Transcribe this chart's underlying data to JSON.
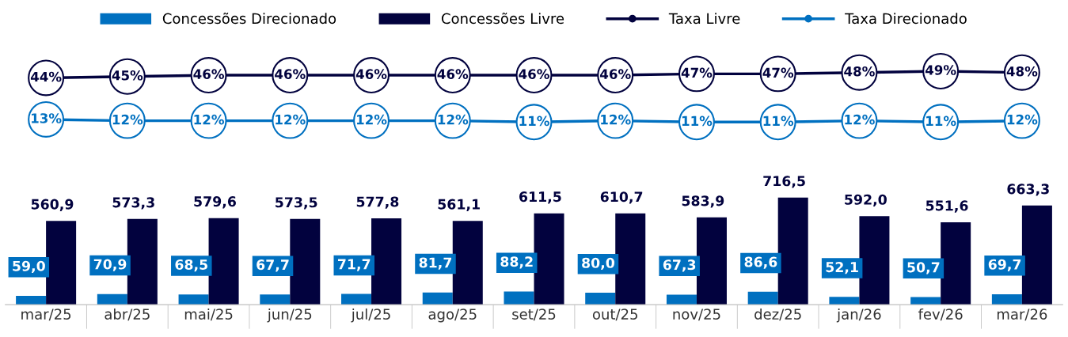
{
  "chart_data": [
    {
      "type": "line",
      "categories": [
        null,
        null,
        null,
        null,
        null,
        null,
        null,
        null,
        null,
        null,
        null,
        null,
        null
      ],
      "series": [
        {
          "name": "Taxa Livre",
          "color": "#02023e",
          "values": [
            44,
            45,
            46,
            46,
            46,
            46,
            46,
            46,
            47,
            47,
            48,
            49,
            48
          ],
          "value_labels": [
            "44%",
            "45%",
            "46%",
            "46%",
            "46%",
            "46%",
            "46%",
            "46%",
            "47%",
            "47%",
            "48%",
            "49%",
            "48%"
          ]
        },
        {
          "name": "Taxa Direcionado",
          "color": "#0070c0",
          "values": [
            13,
            12,
            12,
            12,
            12,
            12,
            11,
            12,
            11,
            11,
            12,
            11,
            12
          ],
          "value_labels": [
            "13%",
            "12%",
            "12%",
            "12%",
            "12%",
            "12%",
            "11%",
            "12%",
            "11%",
            "11%",
            "12%",
            "11%",
            "12%"
          ]
        }
      ],
      "tick_labels": false,
      "line_style": "solid",
      "marker": "circle",
      "legend": "top"
    },
    {
      "type": "bar",
      "categories": [
        "mar/25",
        "abr/25",
        "mai/25",
        "jun/25",
        "jul/25",
        "ago/25",
        "set/25",
        "out/25",
        "nov/25",
        "dez/25",
        "jan/26",
        "fev/26",
        "mar/26"
      ],
      "series": [
        {
          "name": "Concessões Direcionado",
          "color": "#0070c0",
          "values": [
            59.0,
            70.9,
            68.5,
            67.7,
            71.7,
            81.7,
            88.2,
            80.0,
            67.3,
            86.6,
            52.1,
            50.7,
            69.7
          ],
          "value_labels": [
            "59,0",
            "70,9",
            "68,5",
            "67,7",
            "71,7",
            "81,7",
            "88,2",
            "80,0",
            "67,3",
            "86,6",
            "52,1",
            "50,7",
            "69,7"
          ]
        },
        {
          "name": "Concessões Livre",
          "color": "#02023e",
          "values": [
            560.9,
            573.3,
            579.6,
            573.5,
            577.8,
            561.1,
            611.5,
            610.7,
            583.9,
            716.5,
            592.0,
            551.6,
            663.3
          ],
          "value_labels": [
            "560,9",
            "573,3",
            "579,6",
            "573,5",
            "577,8",
            "561,1",
            "611,5",
            "610,7",
            "583,9",
            "716,5",
            "592,0",
            "551,6",
            "663,3"
          ]
        }
      ],
      "tick_labels": "x",
      "legend": "top"
    }
  ]
}
